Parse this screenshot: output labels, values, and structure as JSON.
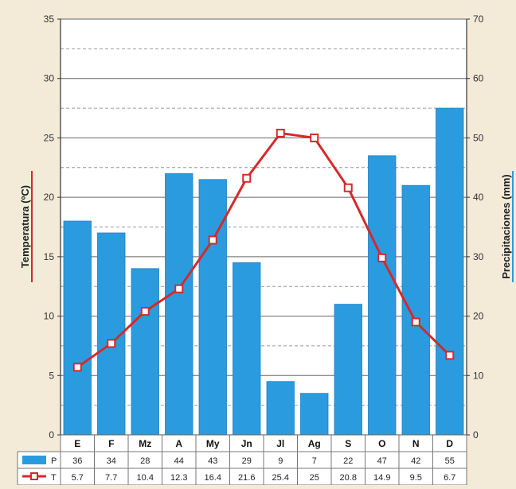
{
  "chart_data": {
    "type": "bar+line",
    "categories": [
      "E",
      "F",
      "Mz",
      "A",
      "My",
      "Jn",
      "Jl",
      "Ag",
      "S",
      "O",
      "N",
      "D"
    ],
    "series": [
      {
        "name": "P",
        "type": "bar",
        "axis": "right",
        "values": [
          36,
          34,
          28,
          44,
          43,
          29,
          9,
          7,
          22,
          47,
          42,
          55
        ],
        "labels": [
          "36",
          "34",
          "28",
          "44",
          "43",
          "29",
          "9",
          "7",
          "22",
          "47",
          "42",
          "55"
        ],
        "color": "#2b9be0"
      },
      {
        "name": "T",
        "type": "line",
        "axis": "left",
        "values": [
          5.7,
          7.7,
          10.4,
          12.3,
          16.4,
          21.6,
          25.4,
          25,
          20.8,
          14.9,
          9.5,
          6.7
        ],
        "labels": [
          "5.7",
          "7.7",
          "10.4",
          "12.3",
          "16.4",
          "21.6",
          "25.4",
          "25",
          "20.8",
          "14.9",
          "9.5",
          "6.7"
        ],
        "color": "#d42a2a"
      }
    ],
    "left_axis": {
      "label": "Temperatura (ºC)",
      "min": 0,
      "max": 35,
      "ticks": [
        "0",
        "5",
        "10",
        "15",
        "20",
        "25",
        "30",
        "35"
      ]
    },
    "right_axis": {
      "label": "Precipitaciones (mm)",
      "min": 0,
      "max": 70,
      "ticks": [
        "0",
        "10",
        "20",
        "30",
        "40",
        "50",
        "60",
        "70"
      ]
    },
    "grid": true
  }
}
